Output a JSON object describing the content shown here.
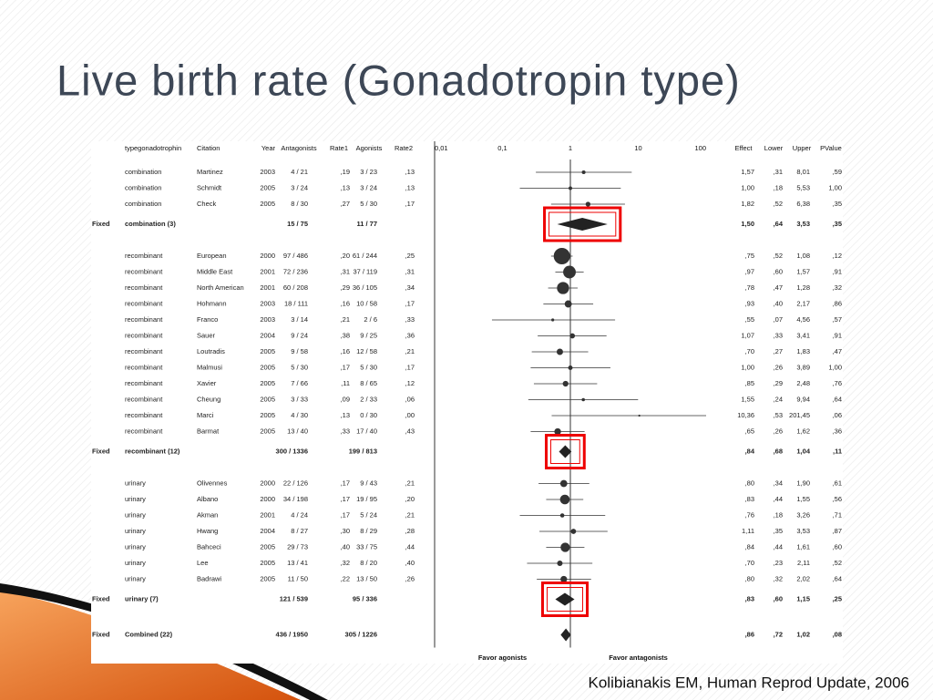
{
  "title": "Live birth rate (Gonadotropin type)",
  "citation": "Kolibianakis EM, Human Reprod Update, 2006",
  "chart_data": {
    "type": "forest",
    "xscale": "log",
    "xlim": [
      0.01,
      100
    ],
    "xticks": [
      {
        "value": 0.01,
        "label": "0,01"
      },
      {
        "value": 0.1,
        "label": "0,1"
      },
      1,
      10,
      100
    ],
    "reference_line": 1,
    "xlabels": [
      "Favor agonists",
      "Favor antagonists"
    ],
    "headers": {
      "type": "typegonadotrophin",
      "citation": "Citation",
      "year": "Year",
      "antagonists": "Antagonists",
      "rate1": "Rate1",
      "agonists": "Agonists",
      "rate2": "Rate2",
      "effect": "Effect",
      "lower": "Lower",
      "upper": "Upper",
      "p": "PValue"
    },
    "rows": [
      {
        "type": "combination",
        "citation": "Martinez",
        "year": "2003",
        "antagonists": "4 / 21",
        "rate1": ",19",
        "agonists": "3 / 23",
        "rate2": ",13",
        "effect": 1.57,
        "lower": 0.31,
        "upper": 8.01,
        "p": ",59",
        "value_labels": {
          "effect": "1,57",
          "lower": ",31",
          "upper": "8,01"
        }
      },
      {
        "type": "combination",
        "citation": "Schmidt",
        "year": "2005",
        "antagonists": "3 / 24",
        "rate1": ",13",
        "agonists": "3 / 24",
        "rate2": ",13",
        "effect": 1.0,
        "lower": 0.18,
        "upper": 5.53,
        "p": "1,00",
        "value_labels": {
          "effect": "1,00",
          "lower": ",18",
          "upper": "5,53"
        }
      },
      {
        "type": "combination",
        "citation": "Check",
        "year": "2005",
        "antagonists": "8 / 30",
        "rate1": ",27",
        "agonists": "5 / 30",
        "rate2": ",17",
        "effect": 1.82,
        "lower": 0.52,
        "upper": 6.38,
        "p": ",35",
        "value_labels": {
          "effect": "1,82",
          "lower": ",52",
          "upper": "6,38"
        }
      },
      {
        "model": "Fixed",
        "type": "combination (3)",
        "antagonists": "15 / 75",
        "agonists": "11 / 77",
        "effect": 1.5,
        "lower": 0.64,
        "upper": 3.53,
        "p": ",35",
        "highlight": true,
        "value_labels": {
          "effect": "1,50",
          "lower": ",64",
          "upper": "3,53"
        }
      },
      {
        "type": "recombinant",
        "citation": "European",
        "year": "2000",
        "antagonists": "97 / 486",
        "rate1": ",20",
        "agonists": "61 / 244",
        "rate2": ",25",
        "effect": 0.75,
        "lower": 0.52,
        "upper": 1.08,
        "p": ",12",
        "value_labels": {
          "effect": ",75",
          "lower": ",52",
          "upper": "1,08"
        }
      },
      {
        "type": "recombinant",
        "citation": "Middle East",
        "year": "2001",
        "antagonists": "72 / 236",
        "rate1": ",31",
        "agonists": "37 / 119",
        "rate2": ",31",
        "effect": 0.97,
        "lower": 0.6,
        "upper": 1.57,
        "p": ",91",
        "value_labels": {
          "effect": ",97",
          "lower": ",60",
          "upper": "1,57"
        }
      },
      {
        "type": "recombinant",
        "citation": "North American",
        "year": "2001",
        "antagonists": "60 / 208",
        "rate1": ",29",
        "agonists": "36 / 105",
        "rate2": ",34",
        "effect": 0.78,
        "lower": 0.47,
        "upper": 1.28,
        "p": ",32",
        "value_labels": {
          "effect": ",78",
          "lower": ",47",
          "upper": "1,28"
        }
      },
      {
        "type": "recombinant",
        "citation": "Hohmann",
        "year": "2003",
        "antagonists": "18 / 111",
        "rate1": ",16",
        "agonists": "10 / 58",
        "rate2": ",17",
        "effect": 0.93,
        "lower": 0.4,
        "upper": 2.17,
        "p": ",86",
        "value_labels": {
          "effect": ",93",
          "lower": ",40",
          "upper": "2,17"
        }
      },
      {
        "type": "recombinant",
        "citation": "Franco",
        "year": "2003",
        "antagonists": "3 / 14",
        "rate1": ",21",
        "agonists": "2 / 6",
        "rate2": ",33",
        "effect": 0.55,
        "lower": 0.07,
        "upper": 4.56,
        "p": ",57",
        "value_labels": {
          "effect": ",55",
          "lower": ",07",
          "upper": "4,56"
        }
      },
      {
        "type": "recombinant",
        "citation": "Sauer",
        "year": "2004",
        "antagonists": "9 / 24",
        "rate1": ",38",
        "agonists": "9 / 25",
        "rate2": ",36",
        "effect": 1.07,
        "lower": 0.33,
        "upper": 3.41,
        "p": ",91",
        "value_labels": {
          "effect": "1,07",
          "lower": ",33",
          "upper": "3,41"
        }
      },
      {
        "type": "recombinant",
        "citation": "Loutradis",
        "year": "2005",
        "antagonists": "9 / 58",
        "rate1": ",16",
        "agonists": "12 / 58",
        "rate2": ",21",
        "effect": 0.7,
        "lower": 0.27,
        "upper": 1.83,
        "p": ",47",
        "value_labels": {
          "effect": ",70",
          "lower": ",27",
          "upper": "1,83"
        }
      },
      {
        "type": "recombinant",
        "citation": "Malmusi",
        "year": "2005",
        "antagonists": "5 / 30",
        "rate1": ",17",
        "agonists": "5 / 30",
        "rate2": ",17",
        "effect": 1.0,
        "lower": 0.26,
        "upper": 3.89,
        "p": "1,00",
        "value_labels": {
          "effect": "1,00",
          "lower": ",26",
          "upper": "3,89"
        }
      },
      {
        "type": "recombinant",
        "citation": "Xavier",
        "year": "2005",
        "antagonists": "7 / 66",
        "rate1": ",11",
        "agonists": "8 / 65",
        "rate2": ",12",
        "effect": 0.85,
        "lower": 0.29,
        "upper": 2.48,
        "p": ",76",
        "value_labels": {
          "effect": ",85",
          "lower": ",29",
          "upper": "2,48"
        }
      },
      {
        "type": "recombinant",
        "citation": "Cheung",
        "year": "2005",
        "antagonists": "3 / 33",
        "rate1": ",09",
        "agonists": "2 / 33",
        "rate2": ",06",
        "effect": 1.55,
        "lower": 0.24,
        "upper": 9.94,
        "p": ",64",
        "value_labels": {
          "effect": "1,55",
          "lower": ",24",
          "upper": "9,94"
        }
      },
      {
        "type": "recombinant",
        "citation": "Marci",
        "year": "2005",
        "antagonists": "4 / 30",
        "rate1": ",13",
        "agonists": "0 / 30",
        "rate2": ",00",
        "effect": 10.36,
        "lower": 0.53,
        "upper": 201.45,
        "p": ",06",
        "value_labels": {
          "effect": "10,36",
          "lower": ",53",
          "upper": "201,45"
        }
      },
      {
        "type": "recombinant",
        "citation": "Barmat",
        "year": "2005",
        "antagonists": "13 / 40",
        "rate1": ",33",
        "agonists": "17 / 40",
        "rate2": ",43",
        "effect": 0.65,
        "lower": 0.26,
        "upper": 1.62,
        "p": ",36",
        "value_labels": {
          "effect": ",65",
          "lower": ",26",
          "upper": "1,62"
        }
      },
      {
        "model": "Fixed",
        "type": "recombinant (12)",
        "antagonists": "300 / 1336",
        "agonists": "199 / 813",
        "effect": 0.84,
        "lower": 0.68,
        "upper": 1.04,
        "p": ",11",
        "highlight": true,
        "value_labels": {
          "effect": ",84",
          "lower": ",68",
          "upper": "1,04"
        }
      },
      {
        "type": "urinary",
        "citation": "Olivennes",
        "year": "2000",
        "antagonists": "22 / 126",
        "rate1": ",17",
        "agonists": "9 / 43",
        "rate2": ",21",
        "effect": 0.8,
        "lower": 0.34,
        "upper": 1.9,
        "p": ",61",
        "value_labels": {
          "effect": ",80",
          "lower": ",34",
          "upper": "1,90"
        }
      },
      {
        "type": "urinary",
        "citation": "Albano",
        "year": "2000",
        "antagonists": "34 / 198",
        "rate1": ",17",
        "agonists": "19 / 95",
        "rate2": ",20",
        "effect": 0.83,
        "lower": 0.44,
        "upper": 1.55,
        "p": ",56",
        "value_labels": {
          "effect": ",83",
          "lower": ",44",
          "upper": "1,55"
        }
      },
      {
        "type": "urinary",
        "citation": "Akman",
        "year": "2001",
        "antagonists": "4 / 24",
        "rate1": ",17",
        "agonists": "5 / 24",
        "rate2": ",21",
        "effect": 0.76,
        "lower": 0.18,
        "upper": 3.26,
        "p": ",71",
        "value_labels": {
          "effect": ",76",
          "lower": ",18",
          "upper": "3,26"
        }
      },
      {
        "type": "urinary",
        "citation": "Hwang",
        "year": "2004",
        "antagonists": "8 / 27",
        "rate1": ",30",
        "agonists": "8 / 29",
        "rate2": ",28",
        "effect": 1.11,
        "lower": 0.35,
        "upper": 3.53,
        "p": ",87",
        "value_labels": {
          "effect": "1,11",
          "lower": ",35",
          "upper": "3,53"
        }
      },
      {
        "type": "urinary",
        "citation": "Bahceci",
        "year": "2005",
        "antagonists": "29 / 73",
        "rate1": ",40",
        "agonists": "33 / 75",
        "rate2": ",44",
        "effect": 0.84,
        "lower": 0.44,
        "upper": 1.61,
        "p": ",60",
        "value_labels": {
          "effect": ",84",
          "lower": ",44",
          "upper": "1,61"
        }
      },
      {
        "type": "urinary",
        "citation": "Lee",
        "year": "2005",
        "antagonists": "13 / 41",
        "rate1": ",32",
        "agonists": "8 / 20",
        "rate2": ",40",
        "effect": 0.7,
        "lower": 0.23,
        "upper": 2.11,
        "p": ",52",
        "value_labels": {
          "effect": ",70",
          "lower": ",23",
          "upper": "2,11"
        }
      },
      {
        "type": "urinary",
        "citation": "Badrawi",
        "year": "2005",
        "antagonists": "11 / 50",
        "rate1": ",22",
        "agonists": "13 / 50",
        "rate2": ",26",
        "effect": 0.8,
        "lower": 0.32,
        "upper": 2.02,
        "p": ",64",
        "value_labels": {
          "effect": ",80",
          "lower": ",32",
          "upper": "2,02"
        }
      },
      {
        "model": "Fixed",
        "type": "urinary (7)",
        "antagonists": "121 / 539",
        "agonists": "95 / 336",
        "effect": 0.83,
        "lower": 0.6,
        "upper": 1.15,
        "p": ",25",
        "highlight": true,
        "value_labels": {
          "effect": ",83",
          "lower": ",60",
          "upper": "1,15"
        }
      },
      {
        "model": "Fixed",
        "type": "Combined (22)",
        "antagonists": "436 / 1950",
        "agonists": "305 / 1226",
        "effect": 0.86,
        "lower": 0.72,
        "upper": 1.02,
        "p": ",08",
        "value_labels": {
          "effect": ",86",
          "lower": ",72",
          "upper": "1,02"
        }
      }
    ]
  }
}
